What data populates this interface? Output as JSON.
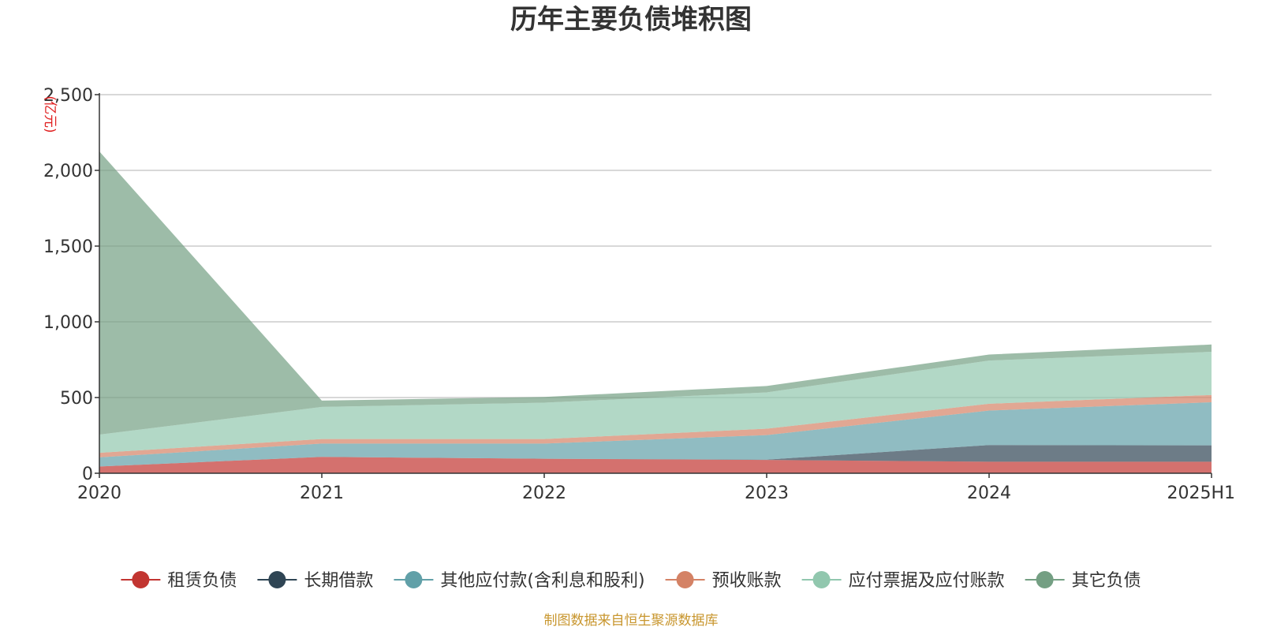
{
  "chart_data": {
    "type": "area",
    "stacked": true,
    "title": "历年主要负债堆积图",
    "unit_label": "(亿元)",
    "x": [
      "2020",
      "2021",
      "2022",
      "2023",
      "2024",
      "2025H1"
    ],
    "ylim": [
      0,
      2500
    ],
    "yticks": [
      "0",
      "500",
      "1,000",
      "1,500",
      "2,000",
      "2,500"
    ],
    "grid": true,
    "legend_position": "bottom",
    "series": [
      {
        "name": "租赁负债",
        "color": "#c23531",
        "values": [
          45,
          108,
          96,
          88,
          76,
          76
        ]
      },
      {
        "name": "长期借款",
        "color": "#2f4554",
        "values": [
          0,
          0,
          0,
          2,
          110,
          108
        ]
      },
      {
        "name": "其他应付款(含利息和股利)",
        "color": "#61a0a8",
        "values": [
          60,
          88,
          100,
          162,
          228,
          285
        ]
      },
      {
        "name": "预收账款",
        "color": "#d48265",
        "values": [
          30,
          30,
          30,
          42,
          45,
          48
        ]
      },
      {
        "name": "应付票据及应付账款",
        "color": "#91c7ae",
        "values": [
          120,
          212,
          240,
          240,
          285,
          285
        ]
      },
      {
        "name": "其它负债",
        "color": "#749f83",
        "values": [
          1870,
          42,
          38,
          42,
          40,
          48
        ]
      }
    ]
  },
  "footer": {
    "source": "制图数据来自恒生聚源数据库"
  }
}
